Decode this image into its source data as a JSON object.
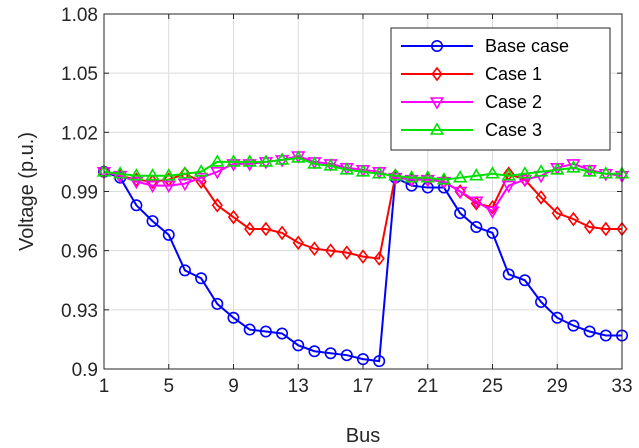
{
  "chart_data": {
    "type": "line",
    "title": "",
    "xlabel": "Bus",
    "ylabel": "Voltage (p.u.)",
    "xlim": [
      1,
      33
    ],
    "ylim": [
      0.9,
      1.08
    ],
    "xticks": [
      1,
      5,
      9,
      13,
      17,
      21,
      25,
      29,
      33
    ],
    "yticks": [
      0.9,
      0.93,
      0.96,
      0.99,
      1.02,
      1.05,
      1.08
    ],
    "ytick_labels": [
      "0.9",
      "0.93",
      "0.96",
      "0.99",
      "1.02",
      "1.05",
      "1.08"
    ],
    "grid": true,
    "legend_position": "top-right",
    "x": [
      1,
      2,
      3,
      4,
      5,
      6,
      7,
      8,
      9,
      10,
      11,
      12,
      13,
      14,
      15,
      16,
      17,
      18,
      19,
      20,
      21,
      22,
      23,
      24,
      25,
      26,
      27,
      28,
      29,
      30,
      31,
      32,
      33
    ],
    "series": [
      {
        "name": "Base case",
        "color": "#0000ff",
        "marker": "circle",
        "values": [
          1.0,
          0.997,
          0.983,
          0.975,
          0.968,
          0.95,
          0.946,
          0.933,
          0.926,
          0.92,
          0.919,
          0.918,
          0.912,
          0.909,
          0.908,
          0.907,
          0.905,
          0.904,
          0.997,
          0.993,
          0.992,
          0.992,
          0.979,
          0.972,
          0.969,
          0.948,
          0.945,
          0.934,
          0.926,
          0.922,
          0.919,
          0.917,
          0.917
        ]
      },
      {
        "name": "Case 1",
        "color": "#ff0000",
        "marker": "diamond",
        "values": [
          1.0,
          0.998,
          0.996,
          0.995,
          0.996,
          0.999,
          0.995,
          0.983,
          0.977,
          0.971,
          0.971,
          0.969,
          0.964,
          0.961,
          0.96,
          0.959,
          0.957,
          0.956,
          0.998,
          0.996,
          0.996,
          0.995,
          0.99,
          0.984,
          0.982,
          0.999,
          0.996,
          0.987,
          0.979,
          0.976,
          0.972,
          0.971,
          0.971
        ]
      },
      {
        "name": "Case 2",
        "color": "#ff00ff",
        "marker": "triangle-down",
        "values": [
          1.0,
          0.998,
          0.995,
          0.993,
          0.993,
          0.994,
          0.997,
          1.0,
          1.004,
          1.004,
          1.005,
          1.006,
          1.008,
          1.005,
          1.004,
          1.002,
          1.001,
          1.0,
          0.997,
          0.996,
          0.996,
          0.995,
          0.99,
          0.985,
          0.98,
          0.993,
          0.996,
          0.998,
          1.002,
          1.004,
          1.001,
          0.999,
          0.998
        ]
      },
      {
        "name": "Case 3",
        "color": "#00e000",
        "marker": "triangle-up",
        "values": [
          1.0,
          0.999,
          0.998,
          0.998,
          0.998,
          0.999,
          1.0,
          1.005,
          1.005,
          1.005,
          1.005,
          1.006,
          1.007,
          1.004,
          1.003,
          1.001,
          1.0,
          0.999,
          0.998,
          0.997,
          0.997,
          0.996,
          0.997,
          0.998,
          0.999,
          0.998,
          0.999,
          1.0,
          1.001,
          1.002,
          1.0,
          0.999,
          0.999
        ]
      }
    ]
  }
}
